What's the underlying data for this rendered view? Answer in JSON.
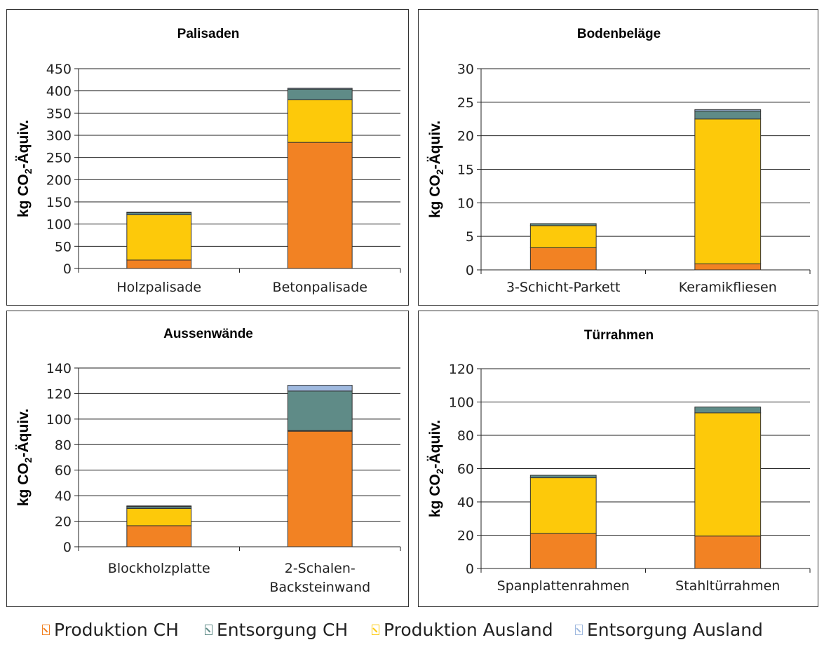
{
  "legend": [
    {
      "label": "Produktion CH",
      "color": "#F28223"
    },
    {
      "label": "Entsorgung CH",
      "color": "#5F8B87"
    },
    {
      "label": "Produktion Ausland",
      "color": "#FDC90A"
    },
    {
      "label": "Entsorgung Ausland",
      "color": "#9FB9DF"
    }
  ],
  "chart_data": [
    {
      "type": "bar",
      "stacked": true,
      "title": "Palisaden",
      "ylabel": "kg CO₂-Äquiv.",
      "ylim": [
        0,
        450
      ],
      "yticks": [
        0,
        50,
        100,
        150,
        200,
        250,
        300,
        350,
        400,
        450
      ],
      "categories": [
        "Holzpalisade",
        "Betonpalisade"
      ],
      "series": [
        {
          "name": "Produktion CH",
          "color": "#F28223",
          "values": [
            19,
            284
          ]
        },
        {
          "name": "Produktion Ausland",
          "color": "#FDC90A",
          "values": [
            102,
            96
          ]
        },
        {
          "name": "Entsorgung CH",
          "color": "#5F8B87",
          "values": [
            5,
            24
          ]
        },
        {
          "name": "Entsorgung Ausland",
          "color": "#9FB9DF",
          "values": [
            1,
            2
          ]
        }
      ]
    },
    {
      "type": "bar",
      "stacked": true,
      "title": "Bodenbeläge",
      "ylabel": "kg CO₂-Äquiv.",
      "ylim": [
        0,
        30
      ],
      "yticks": [
        0,
        5,
        10,
        15,
        20,
        25,
        30
      ],
      "categories": [
        "3-Schicht-Parkett",
        "Keramikfliesen"
      ],
      "series": [
        {
          "name": "Produktion CH",
          "color": "#F28223",
          "values": [
            3.3,
            0.9
          ]
        },
        {
          "name": "Produktion Ausland",
          "color": "#FDC90A",
          "values": [
            3.3,
            21.6
          ]
        },
        {
          "name": "Entsorgung CH",
          "color": "#5F8B87",
          "values": [
            0.3,
            1.2
          ]
        },
        {
          "name": "Entsorgung Ausland",
          "color": "#9FB9DF",
          "values": [
            0,
            0.2
          ]
        }
      ]
    },
    {
      "type": "bar",
      "stacked": true,
      "title": "Aussenwände",
      "ylabel": "kg CO₂-Äquiv.",
      "ylim": [
        0,
        140
      ],
      "yticks": [
        0,
        20,
        40,
        60,
        80,
        100,
        120,
        140
      ],
      "categories": [
        "Blockholzplatte",
        "2-Schalen-\nBacksteinwand"
      ],
      "series": [
        {
          "name": "Produktion CH",
          "color": "#F28223",
          "values": [
            16.5,
            90.5
          ]
        },
        {
          "name": "Produktion Ausland",
          "color": "#FDC90A",
          "values": [
            13.5,
            0.5
          ]
        },
        {
          "name": "Entsorgung CH",
          "color": "#5F8B87",
          "values": [
            1.5,
            31
          ]
        },
        {
          "name": "Entsorgung Ausland",
          "color": "#9FB9DF",
          "values": [
            0.5,
            4.5
          ]
        }
      ]
    },
    {
      "type": "bar",
      "stacked": true,
      "title": "Türrahmen",
      "ylabel": "kg CO₂-Äquiv.",
      "ylim": [
        0,
        120
      ],
      "yticks": [
        0,
        20,
        40,
        60,
        80,
        100,
        120
      ],
      "categories": [
        "Spanplattenrahmen",
        "Stahltürrahmen"
      ],
      "series": [
        {
          "name": "Produktion CH",
          "color": "#F28223",
          "values": [
            21,
            19.5
          ]
        },
        {
          "name": "Produktion Ausland",
          "color": "#FDC90A",
          "values": [
            33.5,
            74
          ]
        },
        {
          "name": "Entsorgung CH",
          "color": "#5F8B87",
          "values": [
            1.5,
            3.5
          ]
        },
        {
          "name": "Entsorgung Ausland",
          "color": "#9FB9DF",
          "values": [
            0,
            0
          ]
        }
      ]
    }
  ]
}
